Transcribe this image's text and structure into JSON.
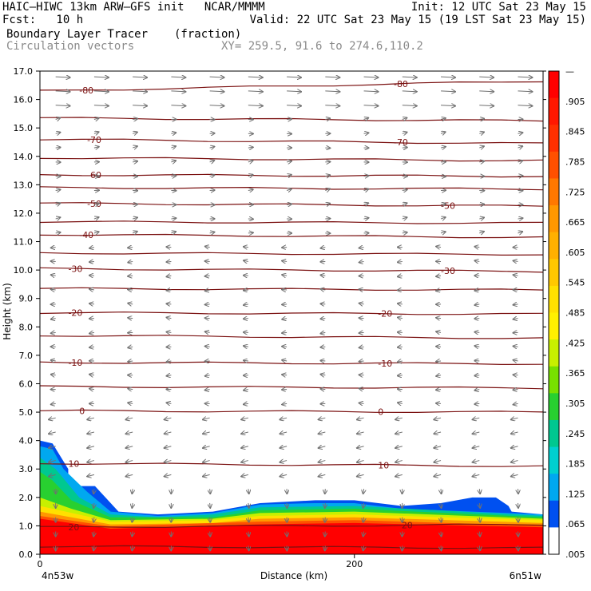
{
  "header": {
    "line1_left": "HAIC—HIWC 13km ARW—GFS init   NCAR/MMMM",
    "line1_right": "Init: 12 UTC Sat 23 May 15",
    "line2_left": "Fcst:   10 h",
    "line2_right": "Valid: 22 UTC Sat 23 May 15 (19 LST Sat 23 May 15)",
    "field_name": "Boundary Layer Tracer",
    "field_units": "(fraction)",
    "vector_label": "Circulation vectors",
    "xy_label": "XY= 259.5, 91.6 to 274.6,110.2"
  },
  "chart_data": {
    "type": "heatmap",
    "title": "Boundary Layer Tracer",
    "ylabel": "Height (km)",
    "xlabel": "Distance (km)",
    "ylim": [
      0.0,
      17.0
    ],
    "xlim": [
      0,
      320
    ],
    "yticks": [
      "0.0",
      "1.0",
      "2.0",
      "3.0",
      "4.0",
      "5.0",
      "6.0",
      "7.0",
      "8.0",
      "9.0",
      "10.0",
      "11.0",
      "12.0",
      "13.0",
      "14.0",
      "15.0",
      "16.0",
      "17.0"
    ],
    "xticks": [
      {
        "value": 0,
        "label": "0"
      },
      {
        "value": 200,
        "label": "200"
      }
    ],
    "x_endpoints": {
      "left": "4n53w",
      "right": "6n51w"
    },
    "colorbar_labels": [
      "—",
      ".905",
      ".845",
      ".785",
      ".725",
      ".665",
      ".605",
      ".545",
      ".485",
      ".425",
      ".365",
      ".305",
      ".245",
      ".185",
      ".125",
      ".065",
      ".005"
    ],
    "colorbar_colors": [
      "#ff0000",
      "#ff1800",
      "#ff3000",
      "#ff5000",
      "#ff7800",
      "#ff9800",
      "#ffb000",
      "#ffc800",
      "#ffe000",
      "#fff000",
      "#c8f000",
      "#78e000",
      "#28d030",
      "#00c890",
      "#00d0d0",
      "#00a8f0",
      "#0050f0",
      "#ffffff"
    ],
    "tracer_layers": [
      {
        "min": 0.005,
        "color": "#0050f0",
        "top": [
          [
            0,
            4.0
          ],
          [
            8,
            3.9
          ],
          [
            18,
            3.0
          ],
          [
            18,
            2.4
          ],
          [
            35,
            2.4
          ],
          [
            50,
            1.5
          ],
          [
            75,
            1.4
          ],
          [
            110,
            1.5
          ],
          [
            140,
            1.8
          ],
          [
            175,
            1.9
          ],
          [
            200,
            1.9
          ],
          [
            230,
            1.7
          ],
          [
            255,
            1.8
          ],
          [
            275,
            2.0
          ],
          [
            290,
            2.0
          ],
          [
            298,
            1.7
          ],
          [
            300,
            1.5
          ],
          [
            320,
            1.4
          ]
        ]
      },
      {
        "min": 0.065,
        "color": "#00a8f0",
        "top": [
          [
            0,
            3.8
          ],
          [
            8,
            3.7
          ],
          [
            15,
            3.0
          ],
          [
            30,
            2.2
          ],
          [
            45,
            1.5
          ],
          [
            75,
            1.35
          ],
          [
            110,
            1.45
          ],
          [
            140,
            1.75
          ],
          [
            175,
            1.8
          ],
          [
            200,
            1.8
          ],
          [
            230,
            1.6
          ],
          [
            320,
            1.4
          ]
        ]
      },
      {
        "min": 0.185,
        "color": "#00c890",
        "top": [
          [
            0,
            3.4
          ],
          [
            10,
            3.0
          ],
          [
            25,
            2.0
          ],
          [
            45,
            1.4
          ],
          [
            75,
            1.3
          ],
          [
            110,
            1.4
          ],
          [
            140,
            1.65
          ],
          [
            200,
            1.7
          ],
          [
            320,
            1.35
          ]
        ]
      },
      {
        "min": 0.305,
        "color": "#28d030",
        "top": [
          [
            0,
            2.9
          ],
          [
            8,
            2.6
          ],
          [
            20,
            1.9
          ],
          [
            45,
            1.3
          ],
          [
            110,
            1.3
          ],
          [
            140,
            1.55
          ],
          [
            200,
            1.6
          ],
          [
            320,
            1.3
          ]
        ]
      },
      {
        "min": 0.425,
        "color": "#c8f000",
        "top": [
          [
            0,
            2.0
          ],
          [
            20,
            1.6
          ],
          [
            45,
            1.2
          ],
          [
            110,
            1.25
          ],
          [
            140,
            1.45
          ],
          [
            200,
            1.5
          ],
          [
            320,
            1.25
          ]
        ]
      },
      {
        "min": 0.545,
        "color": "#ffe000",
        "top": [
          [
            0,
            1.7
          ],
          [
            45,
            1.15
          ],
          [
            110,
            1.2
          ],
          [
            140,
            1.35
          ],
          [
            200,
            1.4
          ],
          [
            320,
            1.2
          ]
        ]
      },
      {
        "min": 0.665,
        "color": "#ff9800",
        "top": [
          [
            0,
            1.5
          ],
          [
            45,
            1.05
          ],
          [
            110,
            1.1
          ],
          [
            140,
            1.25
          ],
          [
            200,
            1.3
          ],
          [
            320,
            1.1
          ]
        ]
      },
      {
        "min": 0.785,
        "color": "#ff5000",
        "top": [
          [
            0,
            1.35
          ],
          [
            45,
            0.98
          ],
          [
            140,
            1.15
          ],
          [
            200,
            1.2
          ],
          [
            320,
            1.0
          ]
        ]
      },
      {
        "min": 0.905,
        "color": "#ff0000",
        "top": [
          [
            0,
            1.25
          ],
          [
            45,
            0.9
          ],
          [
            140,
            1.05
          ],
          [
            200,
            1.1
          ],
          [
            320,
            0.95
          ]
        ]
      }
    ],
    "temperature_contours": {
      "label": "temperature (C)",
      "levels": [
        {
          "value": 30,
          "left": 0.28,
          "right": 0.22
        },
        {
          "value": 20,
          "left": 0.95,
          "right": 1.05,
          "labels": [
            {
              "x": 18,
              "text": "20"
            },
            {
              "x": 230,
              "text": "20"
            }
          ]
        },
        {
          "value": 10,
          "left": 3.2,
          "right": 3.1,
          "labels": [
            {
              "x": 18,
              "text": "10"
            },
            {
              "x": 215,
              "text": "10"
            }
          ]
        },
        {
          "value": 0,
          "left": 5.05,
          "right": 5.0,
          "labels": [
            {
              "x": 25,
              "text": "0"
            },
            {
              "x": 215,
              "text": "0"
            }
          ]
        },
        {
          "value": -5,
          "left": 5.9,
          "right": 5.85
        },
        {
          "value": -10,
          "left": 6.75,
          "right": 6.7,
          "labels": [
            {
              "x": 18,
              "text": "-10"
            },
            {
              "x": 215,
              "text": "-10"
            }
          ]
        },
        {
          "value": -15,
          "left": 7.7,
          "right": 7.6
        },
        {
          "value": -20,
          "left": 8.5,
          "right": 8.45,
          "labels": [
            {
              "x": 18,
              "text": "-20"
            },
            {
              "x": 215,
              "text": "-20"
            }
          ]
        },
        {
          "value": -25,
          "left": 9.35,
          "right": 9.3
        },
        {
          "value": -30,
          "left": 10.05,
          "right": 9.95,
          "labels": [
            {
              "x": 18,
              "text": "-30"
            },
            {
              "x": 255,
              "text": "-30"
            }
          ]
        },
        {
          "value": -35,
          "left": 10.6,
          "right": 10.55
        },
        {
          "value": -40,
          "left": 11.25,
          "right": 11.15,
          "labels": [
            {
              "x": 25,
              "text": "-40"
            }
          ]
        },
        {
          "value": -45,
          "left": 11.7,
          "right": 11.65
        },
        {
          "value": -50,
          "left": 12.35,
          "right": 12.25,
          "labels": [
            {
              "x": 30,
              "text": "-50"
            },
            {
              "x": 255,
              "text": "-50"
            }
          ]
        },
        {
          "value": -55,
          "left": 12.9,
          "right": 12.85
        },
        {
          "value": -60,
          "left": 13.35,
          "right": 13.3,
          "labels": [
            {
              "x": 30,
              "text": "-60"
            }
          ]
        },
        {
          "value": -65,
          "left": 13.95,
          "right": 13.85
        },
        {
          "value": -70,
          "left": 14.6,
          "right": 14.45,
          "labels": [
            {
              "x": 30,
              "text": "-70"
            },
            {
              "x": 225,
              "text": "-70"
            }
          ]
        },
        {
          "value": -75,
          "left": 15.35,
          "right": 15.25
        },
        {
          "value": -80,
          "left": 16.3,
          "right": 16.65,
          "labels": [
            {
              "x": 25,
              "text": "-80"
            },
            {
              "x": 225,
              "text": "-80"
            }
          ]
        }
      ]
    }
  }
}
